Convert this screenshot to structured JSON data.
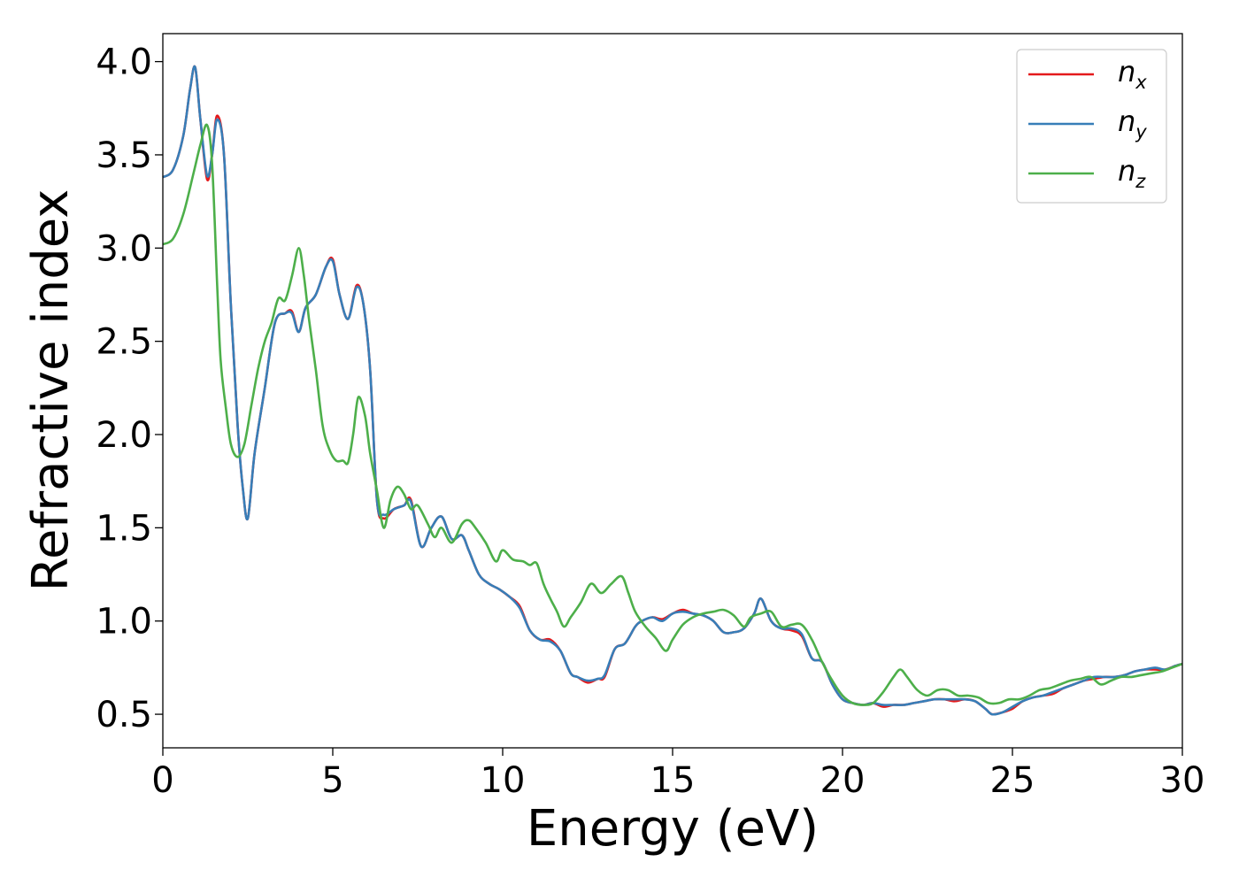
{
  "chart_data": {
    "type": "line",
    "title": "",
    "xlabel": "Energy (eV)",
    "ylabel": "Refractive index",
    "xlim": [
      0,
      30
    ],
    "ylim": [
      0.32,
      4.15
    ],
    "xticks": [
      0,
      5,
      10,
      15,
      20,
      25,
      30
    ],
    "xtick_labels": [
      "0",
      "5",
      "10",
      "15",
      "20",
      "25",
      "30"
    ],
    "yticks": [
      0.5,
      1.0,
      1.5,
      2.0,
      2.5,
      3.0,
      3.5,
      4.0
    ],
    "ytick_labels": [
      "0.5",
      "1.0",
      "1.5",
      "2.0",
      "2.5",
      "3.0",
      "3.5",
      "4.0"
    ],
    "grid": false,
    "legend_position": "top-right",
    "series": [
      {
        "name": "n",
        "subscript": "x",
        "color": "#e41a1c",
        "x": [
          0,
          0.3,
          0.6,
          0.8,
          0.95,
          1.1,
          1.3,
          1.45,
          1.6,
          1.8,
          2.0,
          2.2,
          2.35,
          2.5,
          2.7,
          3.0,
          3.3,
          3.6,
          3.8,
          4.0,
          4.2,
          4.5,
          4.8,
          5.0,
          5.2,
          5.45,
          5.7,
          5.9,
          6.1,
          6.3,
          6.5,
          6.8,
          7.1,
          7.3,
          7.6,
          7.9,
          8.2,
          8.5,
          8.8,
          9.0,
          9.3,
          9.6,
          9.9,
          10.2,
          10.5,
          10.8,
          11.1,
          11.4,
          11.7,
          12.0,
          12.2,
          12.5,
          12.8,
          13.0,
          13.3,
          13.6,
          13.9,
          14.1,
          14.4,
          14.7,
          15.0,
          15.3,
          15.6,
          15.9,
          16.2,
          16.5,
          16.8,
          17.1,
          17.4,
          17.6,
          17.9,
          18.2,
          18.5,
          18.8,
          19.1,
          19.4,
          19.7,
          20.0,
          20.3,
          20.6,
          20.9,
          21.2,
          21.5,
          21.8,
          22.1,
          22.4,
          22.7,
          23.0,
          23.3,
          23.6,
          23.9,
          24.2,
          24.4,
          24.7,
          25.0,
          25.3,
          25.6,
          25.9,
          26.2,
          26.5,
          26.8,
          27.1,
          27.4,
          27.7,
          28.0,
          28.3,
          28.6,
          28.9,
          29.2,
          29.5,
          29.8,
          30.0
        ],
        "y": [
          3.38,
          3.42,
          3.6,
          3.85,
          3.97,
          3.7,
          3.37,
          3.5,
          3.71,
          3.5,
          2.7,
          2.05,
          1.72,
          1.55,
          1.9,
          2.25,
          2.6,
          2.65,
          2.66,
          2.55,
          2.68,
          2.75,
          2.9,
          2.94,
          2.75,
          2.62,
          2.8,
          2.7,
          2.35,
          1.65,
          1.55,
          1.6,
          1.62,
          1.65,
          1.4,
          1.5,
          1.56,
          1.44,
          1.46,
          1.38,
          1.25,
          1.2,
          1.17,
          1.13,
          1.08,
          0.95,
          0.9,
          0.9,
          0.84,
          0.72,
          0.7,
          0.67,
          0.69,
          0.7,
          0.85,
          0.88,
          0.97,
          1.0,
          1.02,
          1.01,
          1.04,
          1.06,
          1.04,
          1.03,
          1.0,
          0.94,
          0.94,
          0.96,
          1.04,
          1.12,
          1.0,
          0.96,
          0.95,
          0.92,
          0.8,
          0.78,
          0.66,
          0.58,
          0.56,
          0.55,
          0.56,
          0.54,
          0.55,
          0.55,
          0.56,
          0.57,
          0.58,
          0.58,
          0.57,
          0.58,
          0.57,
          0.53,
          0.5,
          0.51,
          0.53,
          0.57,
          0.59,
          0.6,
          0.61,
          0.64,
          0.66,
          0.68,
          0.69,
          0.7,
          0.7,
          0.71,
          0.73,
          0.74,
          0.74,
          0.74,
          0.76,
          0.77
        ]
      },
      {
        "name": "n",
        "subscript": "y",
        "color": "#377eb8",
        "x": [
          0,
          0.3,
          0.6,
          0.8,
          0.95,
          1.1,
          1.3,
          1.45,
          1.6,
          1.8,
          2.0,
          2.2,
          2.35,
          2.5,
          2.7,
          3.0,
          3.3,
          3.6,
          3.8,
          4.0,
          4.2,
          4.5,
          4.8,
          5.0,
          5.2,
          5.45,
          5.7,
          5.9,
          6.1,
          6.3,
          6.5,
          6.8,
          7.1,
          7.3,
          7.6,
          7.9,
          8.2,
          8.5,
          8.8,
          9.0,
          9.3,
          9.6,
          9.9,
          10.2,
          10.5,
          10.8,
          11.1,
          11.4,
          11.7,
          12.0,
          12.2,
          12.5,
          12.8,
          13.0,
          13.3,
          13.6,
          13.9,
          14.1,
          14.4,
          14.7,
          15.0,
          15.3,
          15.6,
          15.9,
          16.2,
          16.5,
          16.8,
          17.1,
          17.4,
          17.6,
          17.9,
          18.2,
          18.5,
          18.8,
          19.1,
          19.4,
          19.7,
          20.0,
          20.3,
          20.6,
          20.9,
          21.2,
          21.5,
          21.8,
          22.1,
          22.4,
          22.7,
          23.0,
          23.3,
          23.6,
          23.9,
          24.2,
          24.4,
          24.7,
          25.0,
          25.3,
          25.6,
          25.9,
          26.2,
          26.5,
          26.8,
          27.1,
          27.4,
          27.7,
          28.0,
          28.3,
          28.6,
          28.9,
          29.2,
          29.5,
          29.8,
          30.0
        ],
        "y": [
          3.38,
          3.42,
          3.6,
          3.85,
          3.97,
          3.7,
          3.39,
          3.5,
          3.69,
          3.5,
          2.7,
          2.05,
          1.72,
          1.55,
          1.9,
          2.25,
          2.6,
          2.65,
          2.65,
          2.55,
          2.68,
          2.75,
          2.9,
          2.93,
          2.75,
          2.62,
          2.79,
          2.7,
          2.35,
          1.65,
          1.57,
          1.6,
          1.62,
          1.64,
          1.4,
          1.5,
          1.56,
          1.44,
          1.46,
          1.38,
          1.25,
          1.2,
          1.17,
          1.13,
          1.07,
          0.95,
          0.9,
          0.89,
          0.84,
          0.72,
          0.7,
          0.68,
          0.69,
          0.71,
          0.85,
          0.88,
          0.97,
          1.0,
          1.02,
          1.0,
          1.04,
          1.05,
          1.04,
          1.03,
          1.0,
          0.94,
          0.94,
          0.96,
          1.04,
          1.12,
          1.0,
          0.96,
          0.96,
          0.93,
          0.8,
          0.78,
          0.66,
          0.58,
          0.56,
          0.55,
          0.56,
          0.55,
          0.55,
          0.55,
          0.56,
          0.57,
          0.58,
          0.58,
          0.58,
          0.58,
          0.57,
          0.53,
          0.5,
          0.51,
          0.54,
          0.57,
          0.59,
          0.6,
          0.62,
          0.64,
          0.66,
          0.68,
          0.7,
          0.7,
          0.7,
          0.71,
          0.73,
          0.74,
          0.75,
          0.74,
          0.76,
          0.77
        ]
      },
      {
        "name": "n",
        "subscript": "z",
        "color": "#4daf4a",
        "x": [
          0,
          0.3,
          0.6,
          0.9,
          1.1,
          1.3,
          1.45,
          1.6,
          1.7,
          1.85,
          2.0,
          2.2,
          2.4,
          2.6,
          2.8,
          3.0,
          3.2,
          3.4,
          3.6,
          3.8,
          4.0,
          4.15,
          4.3,
          4.5,
          4.7,
          4.9,
          5.1,
          5.3,
          5.45,
          5.6,
          5.75,
          5.95,
          6.1,
          6.3,
          6.5,
          6.7,
          6.9,
          7.1,
          7.3,
          7.5,
          7.8,
          8.0,
          8.2,
          8.5,
          8.8,
          9.0,
          9.2,
          9.5,
          9.8,
          10.0,
          10.3,
          10.6,
          10.8,
          11.0,
          11.2,
          11.4,
          11.6,
          11.8,
          12.0,
          12.3,
          12.6,
          12.9,
          13.2,
          13.5,
          13.7,
          13.9,
          14.2,
          14.5,
          14.8,
          15.0,
          15.3,
          15.6,
          15.9,
          16.2,
          16.5,
          16.8,
          17.1,
          17.3,
          17.6,
          17.9,
          18.2,
          18.5,
          18.8,
          19.1,
          19.4,
          19.7,
          20.0,
          20.3,
          20.6,
          20.9,
          21.2,
          21.5,
          21.7,
          21.9,
          22.2,
          22.5,
          22.8,
          23.1,
          23.4,
          23.7,
          24.0,
          24.3,
          24.6,
          24.9,
          25.2,
          25.5,
          25.8,
          26.1,
          26.4,
          26.7,
          27.0,
          27.3,
          27.6,
          27.9,
          28.2,
          28.5,
          28.8,
          29.1,
          29.4,
          29.7,
          30.0
        ],
        "y": [
          3.02,
          3.05,
          3.18,
          3.4,
          3.55,
          3.66,
          3.45,
          2.8,
          2.4,
          2.15,
          1.95,
          1.88,
          1.95,
          2.15,
          2.35,
          2.5,
          2.6,
          2.73,
          2.72,
          2.85,
          3.0,
          2.85,
          2.62,
          2.35,
          2.05,
          1.92,
          1.86,
          1.86,
          1.85,
          2.0,
          2.2,
          2.1,
          1.9,
          1.7,
          1.5,
          1.65,
          1.72,
          1.68,
          1.6,
          1.62,
          1.52,
          1.45,
          1.5,
          1.42,
          1.52,
          1.54,
          1.5,
          1.42,
          1.32,
          1.38,
          1.33,
          1.32,
          1.3,
          1.31,
          1.2,
          1.12,
          1.05,
          0.97,
          1.02,
          1.1,
          1.2,
          1.15,
          1.2,
          1.24,
          1.15,
          1.05,
          0.97,
          0.91,
          0.84,
          0.9,
          0.98,
          1.02,
          1.04,
          1.05,
          1.06,
          1.03,
          0.97,
          1.02,
          1.04,
          1.05,
          0.97,
          0.98,
          0.98,
          0.9,
          0.78,
          0.68,
          0.6,
          0.56,
          0.55,
          0.56,
          0.62,
          0.7,
          0.74,
          0.7,
          0.63,
          0.6,
          0.63,
          0.63,
          0.6,
          0.6,
          0.59,
          0.56,
          0.56,
          0.58,
          0.58,
          0.6,
          0.63,
          0.64,
          0.66,
          0.68,
          0.69,
          0.7,
          0.66,
          0.68,
          0.7,
          0.7,
          0.71,
          0.72,
          0.73,
          0.75,
          0.77
        ]
      }
    ]
  }
}
